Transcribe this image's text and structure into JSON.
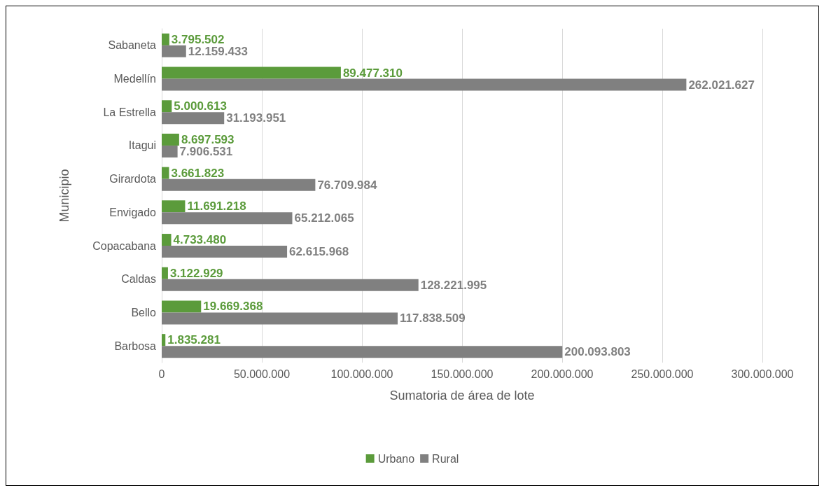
{
  "chart_data": {
    "type": "bar",
    "orientation": "horizontal",
    "xlabel": "Sumatoria de área de lote",
    "ylabel": "Municipio",
    "categories": [
      "Sabaneta",
      "Medellín",
      "La Estrella",
      "Itagui",
      "Girardota",
      "Envigado",
      "Copacabana",
      "Caldas",
      "Bello",
      "Barbosa"
    ],
    "series": [
      {
        "name": "Urbano",
        "color": "#5b9b3b",
        "values": [
          3795502,
          89477310,
          5000613,
          8697593,
          3661823,
          11691218,
          4733480,
          3122929,
          19669368,
          1835281
        ],
        "value_labels": [
          "3.795.502",
          "89.477.310",
          "5.000.613",
          "8.697.593",
          "3.661.823",
          "11.691.218",
          "4.733.480",
          "3.122.929",
          "19.669.368",
          "1.835.281"
        ]
      },
      {
        "name": "Rural",
        "color": "#808080",
        "values": [
          12159433,
          262021627,
          31193951,
          7906531,
          76709984,
          65212065,
          62615968,
          128221995,
          117838509,
          200093803
        ],
        "value_labels": [
          "12.159.433",
          "262.021.627",
          "31.193.951",
          "7.906.531",
          "76.709.984",
          "65.212.065",
          "62.615.968",
          "128.221.995",
          "117.838.509",
          "200.093.803"
        ]
      }
    ],
    "xlim": [
      0,
      300000000
    ],
    "xticks": [
      0,
      {
        "value": 50000000,
        "label": "50.000.000"
      },
      {
        "value": 100000000,
        "label": "100.000.000"
      },
      {
        "value": 150000000,
        "label": "150.000.000"
      },
      {
        "value": 200000000,
        "label": "200.000.000"
      },
      {
        "value": 250000000,
        "label": "250.000.000"
      },
      {
        "value": 300000000,
        "label": "300.000.000"
      }
    ],
    "grid": "x",
    "legend": "bottom"
  }
}
